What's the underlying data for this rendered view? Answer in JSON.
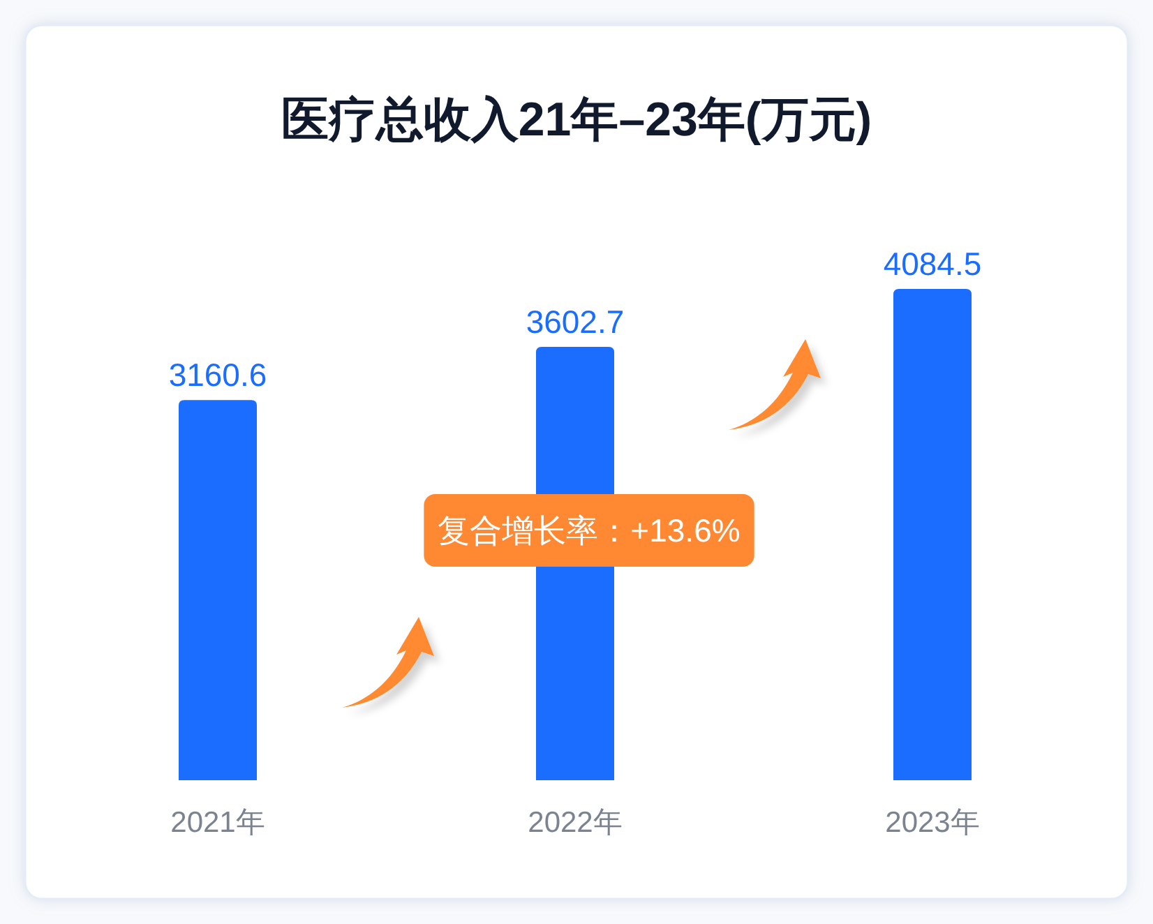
{
  "chart_data": {
    "type": "bar",
    "title": "医疗总收入21年–23年(万元)",
    "categories": [
      "2021年",
      "2022年",
      "2023年"
    ],
    "values": [
      3160.6,
      3602.7,
      4084.5
    ],
    "color": "#1a6dff",
    "data_labels": true,
    "annotations": [
      "复合增长率：+13.6%"
    ]
  }
}
